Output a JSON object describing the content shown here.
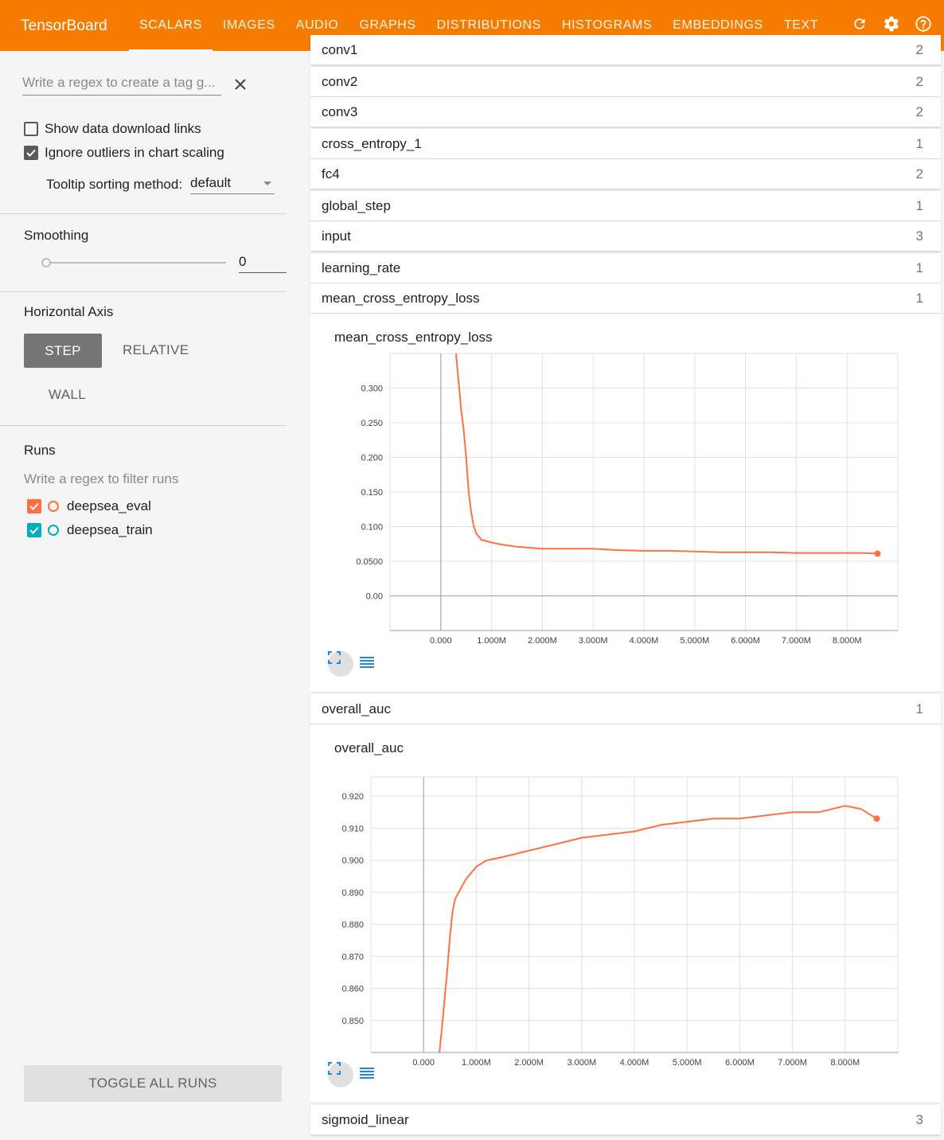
{
  "app": {
    "title": "TensorBoard"
  },
  "tabs": [
    {
      "label": "SCALARS",
      "active": true
    },
    {
      "label": "IMAGES"
    },
    {
      "label": "AUDIO"
    },
    {
      "label": "GRAPHS"
    },
    {
      "label": "DISTRIBUTIONS"
    },
    {
      "label": "HISTOGRAMS"
    },
    {
      "label": "EMBEDDINGS"
    },
    {
      "label": "TEXT"
    }
  ],
  "toolbar_icons": [
    "refresh-icon",
    "settings-icon",
    "help-icon"
  ],
  "sidebar": {
    "tag_filter_placeholder": "Write a regex to create a tag g...",
    "show_download_links": {
      "label": "Show data download links",
      "checked": false
    },
    "ignore_outliers": {
      "label": "Ignore outliers in chart scaling",
      "checked": true
    },
    "tooltip_sorting": {
      "label": "Tooltip sorting method:",
      "value": "default"
    },
    "smoothing": {
      "title": "Smoothing",
      "value": "0"
    },
    "horizontal_axis": {
      "title": "Horizontal Axis",
      "step": "STEP",
      "relative": "RELATIVE",
      "wall": "WALL",
      "selected": "STEP"
    },
    "runs": {
      "title": "Runs",
      "filter_placeholder": "Write a regex to filter runs",
      "items": [
        {
          "name": "deepsea_eval",
          "checked": true,
          "color": "#ff7043"
        },
        {
          "name": "deepsea_train",
          "checked": true,
          "color": "#00acc1"
        }
      ],
      "toggle_all": "TOGGLE ALL RUNS"
    }
  },
  "categories": [
    {
      "name": "conv1",
      "count": "2"
    },
    {
      "name": "conv2",
      "count": "2"
    },
    {
      "name": "conv3",
      "count": "2"
    },
    {
      "name": "cross_entropy_1",
      "count": "1"
    },
    {
      "name": "fc4",
      "count": "2"
    },
    {
      "name": "global_step",
      "count": "1"
    },
    {
      "name": "input",
      "count": "3"
    },
    {
      "name": "learning_rate",
      "count": "1"
    },
    {
      "name": "mean_cross_entropy_loss",
      "count": "1"
    },
    {
      "name": "overall_auc",
      "count": "1"
    },
    {
      "name": "sigmoid_linear",
      "count": "3"
    }
  ],
  "chart_data": [
    {
      "type": "line",
      "title": "mean_cross_entropy_loss",
      "xlabel": "",
      "ylabel": "",
      "x_tick_labels": [
        "0.000",
        "1.000M",
        "2.000M",
        "3.000M",
        "4.000M",
        "5.000M",
        "6.000M",
        "7.000M",
        "8.000M"
      ],
      "y_tick_labels": [
        "0.00",
        "0.0500",
        "0.100",
        "0.150",
        "0.200",
        "0.250",
        "0.300"
      ],
      "xlim": [
        -1000000,
        9000000
      ],
      "ylim": [
        -0.05,
        0.35
      ],
      "grid": true,
      "color": "#ff7043",
      "series": [
        {
          "x": [
            300000,
            400000,
            450000,
            500000,
            550000,
            600000,
            650000,
            700000,
            800000,
            1000000,
            1200000,
            1500000,
            2000000,
            2500000,
            3000000,
            3500000,
            4000000,
            4500000,
            5000000,
            5500000,
            6000000,
            6500000,
            7000000,
            7500000,
            8000000,
            8300000,
            8600000
          ],
          "y": [
            0.35,
            0.27,
            0.24,
            0.2,
            0.15,
            0.12,
            0.1,
            0.09,
            0.081,
            0.077,
            0.074,
            0.071,
            0.068,
            0.068,
            0.068,
            0.066,
            0.065,
            0.065,
            0.064,
            0.063,
            0.063,
            0.063,
            0.062,
            0.062,
            0.062,
            0.062,
            0.061
          ]
        }
      ]
    },
    {
      "type": "line",
      "title": "overall_auc",
      "xlabel": "",
      "ylabel": "",
      "x_tick_labels": [
        "0.000",
        "1.000M",
        "2.000M",
        "3.000M",
        "4.000M",
        "5.000M",
        "6.000M",
        "7.000M",
        "8.000M"
      ],
      "y_tick_labels": [
        "0.850",
        "0.860",
        "0.870",
        "0.880",
        "0.890",
        "0.900",
        "0.910",
        "0.920"
      ],
      "xlim": [
        -1000000,
        9000000
      ],
      "ylim": [
        0.84,
        0.926
      ],
      "grid": true,
      "color": "#ff7043",
      "series": [
        {
          "x": [
            300000,
            350000,
            400000,
            450000,
            500000,
            550000,
            600000,
            700000,
            800000,
            1000000,
            1200000,
            1500000,
            2000000,
            2500000,
            3000000,
            3500000,
            4000000,
            4500000,
            5000000,
            5500000,
            6000000,
            6500000,
            7000000,
            7500000,
            8000000,
            8300000,
            8600000
          ],
          "y": [
            0.84,
            0.848,
            0.857,
            0.866,
            0.876,
            0.884,
            0.888,
            0.891,
            0.894,
            0.898,
            0.9,
            0.901,
            0.903,
            0.905,
            0.907,
            0.908,
            0.909,
            0.911,
            0.912,
            0.913,
            0.913,
            0.914,
            0.915,
            0.915,
            0.917,
            0.916,
            0.913
          ]
        }
      ]
    }
  ]
}
